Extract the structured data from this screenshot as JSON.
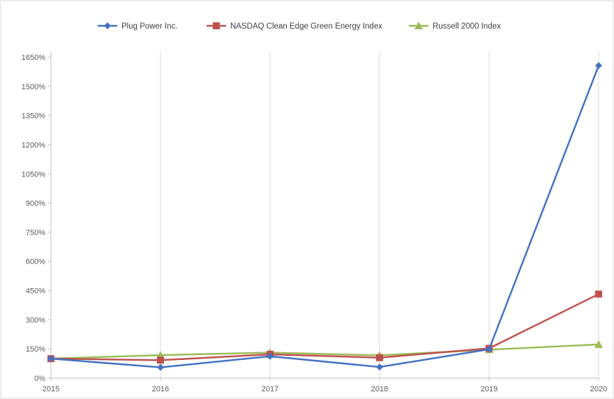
{
  "chart_data": {
    "type": "line",
    "title": "",
    "xlabel": "",
    "ylabel": "",
    "categories": [
      "2015",
      "2016",
      "2017",
      "2018",
      "2019",
      "2020"
    ],
    "y_tick_labels": [
      "0%",
      "150%",
      "300%",
      "450%",
      "600%",
      "750%",
      "900%",
      "1050%",
      "1200%",
      "1350%",
      "1500%",
      "1650%"
    ],
    "ylim": [
      0,
      1650
    ],
    "y_step": 150,
    "grid": "vertical",
    "legend_position": "top",
    "series": [
      {
        "name": "Plug Power Inc.",
        "color": "#4472C4",
        "marker": "diamond",
        "values": [
          100,
          55,
          112,
          57,
          148,
          1607
        ]
      },
      {
        "name": "NASDAQ Clean Edge Green Energy Index",
        "color": "#C0504D",
        "marker": "square",
        "values": [
          100,
          92,
          122,
          105,
          153,
          432
        ]
      },
      {
        "name": "Russell 2000 Index",
        "color": "#9BBB59",
        "marker": "triangle",
        "values": [
          100,
          118,
          131,
          117,
          146,
          173
        ]
      }
    ]
  }
}
